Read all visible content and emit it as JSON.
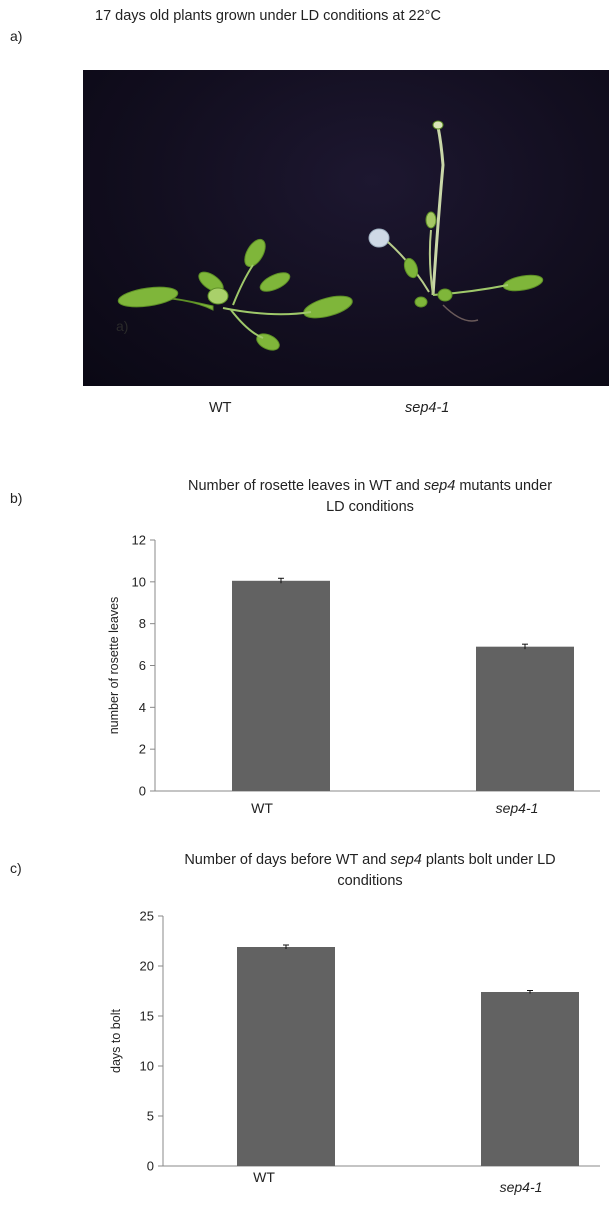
{
  "panel_a": {
    "label": "a)",
    "title": "17 days old plants grown under LD conditions  at 22°C",
    "photo_labels": [
      "WT",
      "sep4-1"
    ],
    "photo_overlay_text": "a)"
  },
  "panel_b": {
    "label": "b)"
  },
  "panel_c": {
    "label": "c)"
  },
  "chart_data": [
    {
      "type": "bar",
      "title_lines": [
        "Number of rosette leaves in WT and sep4 mutants under",
        "LD conditions"
      ],
      "categories": [
        "WT",
        "sep4-1"
      ],
      "values": [
        10.05,
        6.9
      ],
      "errors": [
        0.12,
        0.12
      ],
      "ylabel": "number of rosette leaves",
      "xlabel": "",
      "ylim": [
        0,
        12
      ],
      "yticks": [
        0,
        2,
        4,
        6,
        8,
        10,
        12
      ],
      "grid": false,
      "bar_color": "#626262"
    },
    {
      "type": "bar",
      "title_lines": [
        "Number of days before WT and sep4 plants bolt under LD",
        "conditions"
      ],
      "categories": [
        "WT",
        "sep4-1"
      ],
      "values": [
        21.9,
        17.4
      ],
      "errors": [
        0.2,
        0.15
      ],
      "ylabel": "days to bolt",
      "xlabel": "",
      "ylim": [
        0,
        25
      ],
      "yticks": [
        0,
        5,
        10,
        15,
        20,
        25
      ],
      "grid": false,
      "bar_color": "#626262"
    }
  ]
}
